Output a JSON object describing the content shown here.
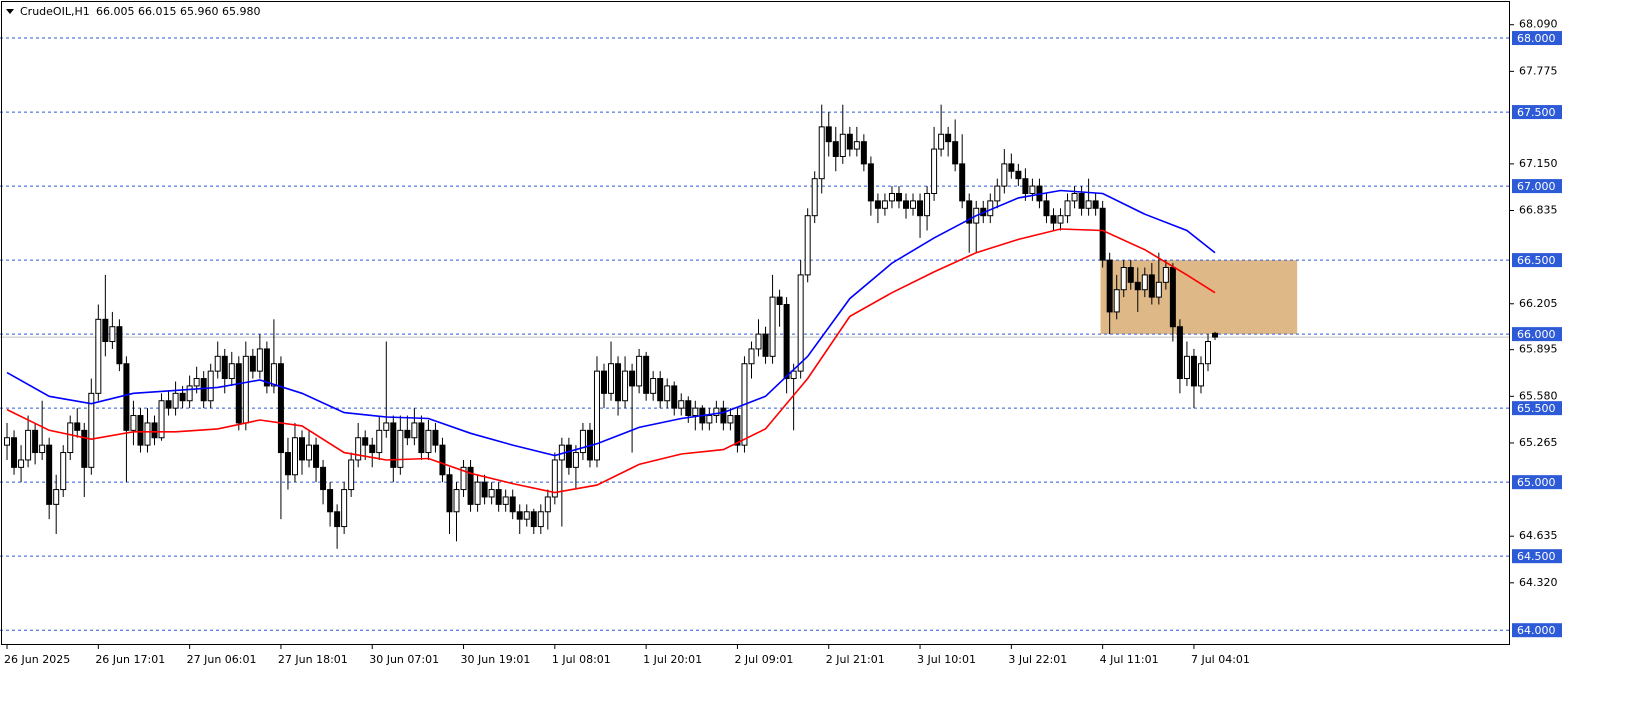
{
  "chart_data": {
    "type": "candlestick",
    "symbol": "CrudeOIL,H1",
    "quote": "66.005 66.015 65.960 65.980",
    "xlim": [
      -1,
      214
    ],
    "ylim": [
      63.9,
      68.257
    ],
    "yticks": [
      {
        "value": 68.09,
        "label": "68.090"
      },
      {
        "value": 67.775,
        "label": "67.775"
      },
      {
        "value": 67.15,
        "label": "67.150"
      },
      {
        "value": 66.835,
        "label": "66.835"
      },
      {
        "value": 66.205,
        "label": "66.205"
      },
      {
        "value": 65.895,
        "label": "65.895"
      },
      {
        "value": 65.58,
        "label": "65.580"
      },
      {
        "value": 65.265,
        "label": "65.265"
      },
      {
        "value": 64.635,
        "label": "64.635"
      },
      {
        "value": 64.32,
        "label": "64.320"
      }
    ],
    "xticks": [
      {
        "value": 0,
        "label": "26 Jun 2025"
      },
      {
        "value": 13,
        "label": "26 Jun 17:01"
      },
      {
        "value": 26,
        "label": "27 Jun 06:01"
      },
      {
        "value": 39,
        "label": "27 Jun 18:01"
      },
      {
        "value": 52,
        "label": "30 Jun 07:01"
      },
      {
        "value": 65,
        "label": "30 Jun 19:01"
      },
      {
        "value": 78,
        "label": "1 Jul 08:01"
      },
      {
        "value": 91,
        "label": "1 Jul 20:01"
      },
      {
        "value": 104,
        "label": "2 Jul 09:01"
      },
      {
        "value": 117,
        "label": "2 Jul 21:01"
      },
      {
        "value": 130,
        "label": "3 Jul 10:01"
      },
      {
        "value": 143,
        "label": "3 Jul 22:01"
      },
      {
        "value": 156,
        "label": "4 Jul 11:01"
      },
      {
        "value": 169,
        "label": "7 Jul 04:01"
      }
    ],
    "levels": [
      {
        "value": 68,
        "label": "68.000"
      },
      {
        "value": 67.5,
        "label": "67.500"
      },
      {
        "value": 67,
        "label": "67.000"
      },
      {
        "value": 66.5,
        "label": "66.500"
      },
      {
        "value": 66,
        "label": "66.000"
      },
      {
        "value": 65.5,
        "label": "65.500"
      },
      {
        "value": 65,
        "label": "65.000"
      },
      {
        "value": 64.5,
        "label": "64.500"
      },
      {
        "value": 64,
        "label": "64.000"
      }
    ],
    "level_color": "#2d5ad6",
    "zone": {
      "low": 66.0,
      "high": 66.5,
      "x_start": 155.7,
      "x_end": 183.7,
      "color": "#deb887"
    },
    "up_color": "#ffffff",
    "down_color": "#000000",
    "ohlc": [
      [
        65.25,
        65.4,
        65.15,
        65.3
      ],
      [
        65.3,
        65.35,
        65.05,
        65.1
      ],
      [
        65.1,
        65.25,
        65.0,
        65.15
      ],
      [
        65.15,
        65.45,
        65.1,
        65.35
      ],
      [
        65.35,
        65.4,
        65.12,
        65.2
      ],
      [
        65.2,
        65.55,
        65.15,
        65.25
      ],
      [
        65.25,
        65.3,
        64.75,
        64.85
      ],
      [
        64.85,
        65.05,
        64.65,
        64.95
      ],
      [
        64.95,
        65.25,
        64.9,
        65.2
      ],
      [
        65.2,
        65.45,
        65.15,
        65.4
      ],
      [
        65.4,
        65.5,
        65.3,
        65.35
      ],
      [
        65.35,
        65.4,
        64.9,
        65.1
      ],
      [
        65.1,
        65.7,
        65.05,
        65.6
      ],
      [
        65.6,
        66.2,
        65.55,
        66.1
      ],
      [
        66.1,
        66.4,
        65.85,
        65.95
      ],
      [
        65.95,
        66.15,
        65.9,
        66.05
      ],
      [
        66.05,
        66.1,
        65.75,
        65.8
      ],
      [
        65.8,
        65.85,
        65.0,
        65.35
      ],
      [
        65.35,
        65.55,
        65.25,
        65.45
      ],
      [
        65.45,
        65.5,
        65.2,
        65.25
      ],
      [
        65.25,
        65.5,
        65.2,
        65.4
      ],
      [
        65.4,
        65.45,
        65.25,
        65.3
      ],
      [
        65.3,
        65.6,
        65.28,
        65.55
      ],
      [
        65.55,
        65.62,
        65.45,
        65.5
      ],
      [
        65.5,
        65.68,
        65.45,
        65.6
      ],
      [
        65.6,
        65.65,
        65.5,
        65.55
      ],
      [
        65.55,
        65.72,
        65.5,
        65.65
      ],
      [
        65.65,
        65.78,
        65.6,
        65.7
      ],
      [
        65.7,
        65.75,
        65.5,
        65.55
      ],
      [
        65.55,
        65.8,
        65.5,
        65.75
      ],
      [
        65.75,
        65.95,
        65.7,
        65.85
      ],
      [
        65.85,
        65.9,
        65.6,
        65.7
      ],
      [
        65.7,
        65.88,
        65.65,
        65.8
      ],
      [
        65.8,
        65.85,
        65.35,
        65.4
      ],
      [
        65.4,
        65.95,
        65.35,
        65.85
      ],
      [
        65.85,
        65.9,
        65.7,
        65.75
      ],
      [
        65.75,
        66.0,
        65.7,
        65.9
      ],
      [
        65.9,
        65.95,
        65.6,
        65.65
      ],
      [
        65.65,
        66.1,
        65.6,
        65.8
      ],
      [
        65.8,
        65.85,
        64.75,
        65.2
      ],
      [
        65.2,
        65.3,
        64.95,
        65.05
      ],
      [
        65.05,
        65.4,
        65.0,
        65.3
      ],
      [
        65.3,
        65.35,
        65.05,
        65.15
      ],
      [
        65.15,
        65.35,
        65.1,
        65.25
      ],
      [
        65.25,
        65.3,
        65.0,
        65.1
      ],
      [
        65.1,
        65.15,
        64.85,
        64.95
      ],
      [
        64.95,
        65.0,
        64.7,
        64.8
      ],
      [
        64.8,
        64.85,
        64.55,
        64.7
      ],
      [
        64.7,
        65.0,
        64.65,
        64.95
      ],
      [
        64.95,
        65.2,
        64.9,
        65.15
      ],
      [
        65.15,
        65.4,
        65.1,
        65.3
      ],
      [
        65.3,
        65.35,
        65.15,
        65.25
      ],
      [
        65.25,
        65.3,
        65.1,
        65.2
      ],
      [
        65.2,
        65.45,
        65.15,
        65.35
      ],
      [
        65.35,
        65.95,
        65.3,
        65.4
      ],
      [
        65.4,
        65.45,
        65.0,
        65.1
      ],
      [
        65.1,
        65.45,
        65.05,
        65.35
      ],
      [
        65.35,
        65.45,
        65.25,
        65.3
      ],
      [
        65.3,
        65.5,
        65.25,
        65.4
      ],
      [
        65.4,
        65.45,
        65.15,
        65.2
      ],
      [
        65.2,
        65.42,
        65.15,
        65.35
      ],
      [
        65.35,
        65.4,
        65.2,
        65.25
      ],
      [
        65.25,
        65.3,
        65.0,
        65.05
      ],
      [
        65.05,
        65.1,
        64.65,
        64.8
      ],
      [
        64.8,
        65.0,
        64.6,
        64.95
      ],
      [
        64.95,
        65.15,
        64.9,
        65.1
      ],
      [
        65.1,
        65.15,
        64.8,
        64.85
      ],
      [
        64.85,
        65.05,
        64.8,
        65.0
      ],
      [
        65.0,
        65.05,
        64.85,
        64.9
      ],
      [
        64.9,
        65.0,
        64.85,
        64.95
      ],
      [
        64.95,
        65.0,
        64.8,
        64.85
      ],
      [
        64.85,
        64.95,
        64.8,
        64.9
      ],
      [
        64.9,
        64.95,
        64.75,
        64.8
      ],
      [
        64.8,
        64.85,
        64.65,
        64.75
      ],
      [
        64.75,
        64.85,
        64.7,
        64.8
      ],
      [
        64.8,
        64.82,
        64.65,
        64.7
      ],
      [
        64.7,
        64.85,
        64.65,
        64.8
      ],
      [
        64.8,
        64.95,
        64.68,
        64.9
      ],
      [
        64.9,
        65.2,
        64.85,
        65.15
      ],
      [
        65.15,
        65.3,
        64.7,
        65.25
      ],
      [
        65.25,
        65.3,
        65.05,
        65.1
      ],
      [
        65.1,
        65.25,
        64.95,
        65.2
      ],
      [
        65.2,
        65.4,
        65.15,
        65.35
      ],
      [
        65.35,
        65.4,
        65.1,
        65.15
      ],
      [
        65.15,
        65.85,
        65.1,
        65.75
      ],
      [
        65.75,
        65.8,
        65.5,
        65.6
      ],
      [
        65.6,
        65.95,
        65.55,
        65.8
      ],
      [
        65.8,
        65.85,
        65.45,
        65.55
      ],
      [
        65.55,
        65.85,
        65.5,
        65.75
      ],
      [
        65.75,
        65.8,
        65.2,
        65.65
      ],
      [
        65.65,
        65.9,
        65.6,
        65.85
      ],
      [
        65.85,
        65.88,
        65.55,
        65.6
      ],
      [
        65.6,
        65.75,
        65.55,
        65.7
      ],
      [
        65.7,
        65.75,
        65.5,
        65.55
      ],
      [
        65.55,
        65.7,
        65.5,
        65.65
      ],
      [
        65.65,
        65.68,
        65.45,
        65.5
      ],
      [
        65.5,
        65.6,
        65.45,
        65.55
      ],
      [
        65.55,
        65.58,
        65.4,
        65.45
      ],
      [
        65.45,
        65.55,
        65.35,
        65.5
      ],
      [
        65.5,
        65.52,
        65.35,
        65.4
      ],
      [
        65.4,
        65.5,
        65.35,
        65.45
      ],
      [
        65.45,
        65.55,
        65.4,
        65.5
      ],
      [
        65.5,
        65.55,
        65.35,
        65.4
      ],
      [
        65.4,
        65.5,
        65.35,
        65.45
      ],
      [
        65.45,
        65.5,
        65.2,
        65.25
      ],
      [
        65.25,
        65.85,
        65.2,
        65.8
      ],
      [
        65.8,
        65.95,
        65.7,
        65.9
      ],
      [
        65.9,
        66.1,
        65.85,
        66.0
      ],
      [
        66.0,
        66.05,
        65.8,
        65.85
      ],
      [
        65.85,
        66.4,
        65.8,
        66.25
      ],
      [
        66.25,
        66.3,
        66.05,
        66.2
      ],
      [
        66.2,
        66.25,
        65.6,
        65.7
      ],
      [
        65.7,
        65.8,
        65.35,
        65.75
      ],
      [
        65.75,
        66.5,
        65.7,
        66.4
      ],
      [
        66.4,
        66.85,
        66.35,
        66.8
      ],
      [
        66.8,
        67.1,
        66.75,
        67.05
      ],
      [
        67.05,
        67.55,
        66.95,
        67.4
      ],
      [
        67.4,
        67.5,
        67.2,
        67.3
      ],
      [
        67.3,
        67.4,
        67.1,
        67.2
      ],
      [
        67.2,
        67.55,
        67.15,
        67.35
      ],
      [
        67.35,
        67.4,
        67.2,
        67.25
      ],
      [
        67.25,
        67.4,
        67.2,
        67.3
      ],
      [
        67.3,
        67.35,
        67.1,
        67.15
      ],
      [
        67.15,
        67.2,
        66.8,
        66.9
      ],
      [
        66.9,
        66.95,
        66.75,
        66.85
      ],
      [
        66.85,
        66.95,
        66.8,
        66.9
      ],
      [
        66.9,
        67.0,
        66.85,
        66.95
      ],
      [
        66.95,
        67.0,
        66.85,
        66.9
      ],
      [
        66.9,
        66.95,
        66.78,
        66.85
      ],
      [
        66.85,
        66.95,
        66.8,
        66.9
      ],
      [
        66.9,
        66.95,
        66.65,
        66.8
      ],
      [
        66.8,
        67.0,
        66.7,
        66.95
      ],
      [
        66.95,
        67.4,
        66.9,
        67.25
      ],
      [
        67.25,
        67.55,
        67.2,
        67.35
      ],
      [
        67.35,
        67.4,
        67.2,
        67.3
      ],
      [
        67.3,
        67.45,
        67.1,
        67.15
      ],
      [
        67.15,
        67.35,
        66.85,
        66.9
      ],
      [
        66.9,
        66.95,
        66.55,
        66.75
      ],
      [
        66.75,
        66.9,
        66.55,
        66.85
      ],
      [
        66.85,
        66.9,
        66.75,
        66.8
      ],
      [
        66.8,
        66.95,
        66.75,
        66.9
      ],
      [
        66.9,
        67.05,
        66.85,
        67.0
      ],
      [
        67.0,
        67.25,
        66.95,
        67.15
      ],
      [
        67.15,
        67.22,
        67.05,
        67.1
      ],
      [
        67.1,
        67.15,
        67.0,
        67.05
      ],
      [
        67.05,
        67.12,
        66.9,
        66.95
      ],
      [
        66.95,
        67.05,
        66.9,
        67.0
      ],
      [
        67.0,
        67.05,
        66.85,
        66.9
      ],
      [
        66.9,
        66.95,
        66.75,
        66.8
      ],
      [
        66.8,
        66.85,
        66.7,
        66.75
      ],
      [
        66.75,
        66.85,
        66.7,
        66.8
      ],
      [
        66.8,
        66.95,
        66.75,
        66.9
      ],
      [
        66.9,
        67.0,
        66.85,
        66.95
      ],
      [
        66.95,
        67.0,
        66.8,
        66.85
      ],
      [
        66.85,
        67.05,
        66.8,
        66.9
      ],
      [
        66.9,
        66.95,
        66.8,
        66.85
      ],
      [
        66.85,
        66.9,
        66.45,
        66.5
      ],
      [
        66.5,
        66.55,
        66.0,
        66.15
      ],
      [
        66.15,
        66.4,
        66.1,
        66.3
      ],
      [
        66.3,
        66.5,
        66.25,
        66.45
      ],
      [
        66.45,
        66.5,
        66.3,
        66.35
      ],
      [
        66.35,
        66.45,
        66.15,
        66.3
      ],
      [
        66.3,
        66.45,
        66.25,
        66.4
      ],
      [
        66.4,
        66.48,
        66.2,
        66.25
      ],
      [
        66.25,
        66.55,
        66.2,
        66.35
      ],
      [
        66.35,
        66.5,
        66.3,
        66.45
      ],
      [
        66.45,
        66.48,
        65.95,
        66.05
      ],
      [
        66.05,
        66.1,
        65.6,
        65.7
      ],
      [
        65.7,
        65.95,
        65.65,
        65.85
      ],
      [
        65.85,
        65.9,
        65.5,
        65.65
      ],
      [
        65.65,
        65.85,
        65.6,
        65.8
      ],
      [
        65.8,
        66.0,
        65.75,
        65.95
      ],
      [
        66.005,
        66.015,
        65.96,
        65.98
      ]
    ],
    "series": [
      {
        "color": "#0000ff",
        "x": [
          0,
          6,
          12,
          18,
          24,
          30,
          36,
          42,
          48,
          54,
          60,
          66,
          72,
          78,
          84,
          90,
          96,
          102,
          108,
          114,
          120,
          126,
          132,
          138,
          144,
          150,
          156,
          162,
          168,
          172
        ],
        "values": [
          65.74,
          65.58,
          65.53,
          65.6,
          65.62,
          65.64,
          65.69,
          65.6,
          65.47,
          65.44,
          65.43,
          65.33,
          65.25,
          65.18,
          65.26,
          65.37,
          65.43,
          65.47,
          65.58,
          65.85,
          66.24,
          66.48,
          66.65,
          66.8,
          66.92,
          66.97,
          66.95,
          66.81,
          66.7,
          66.55
        ]
      },
      {
        "color": "#ff0000",
        "x": [
          0,
          6,
          12,
          18,
          24,
          30,
          36,
          42,
          48,
          54,
          60,
          66,
          72,
          78,
          84,
          90,
          96,
          102,
          108,
          114,
          120,
          126,
          132,
          138,
          144,
          150,
          156,
          162,
          168,
          172
        ],
        "values": [
          65.49,
          65.35,
          65.29,
          65.34,
          65.34,
          65.36,
          65.42,
          65.38,
          65.2,
          65.15,
          65.16,
          65.06,
          64.99,
          64.93,
          64.98,
          65.12,
          65.19,
          65.22,
          65.36,
          65.7,
          66.12,
          66.28,
          66.42,
          66.55,
          66.64,
          66.71,
          66.7,
          66.57,
          66.4,
          66.28
        ]
      }
    ]
  }
}
